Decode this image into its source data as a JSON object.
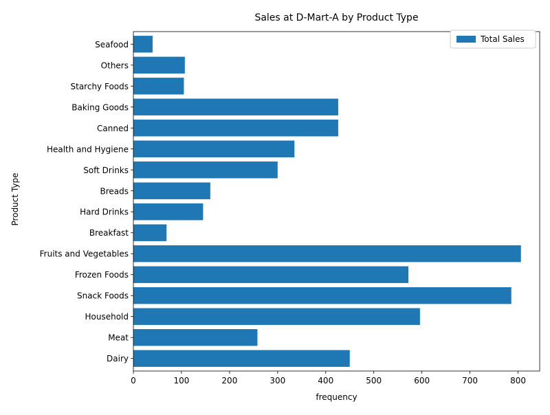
{
  "chart_data": {
    "type": "bar",
    "orientation": "horizontal",
    "title": "Sales at D-Mart-A by Product Type",
    "xlabel": "frequency",
    "ylabel": "Product Type",
    "xlim": [
      0,
      845
    ],
    "xticks": [
      0,
      100,
      200,
      300,
      400,
      500,
      600,
      700,
      800
    ],
    "grid": false,
    "legend_position": "top-right",
    "bar_color": "#1f77b4",
    "categories": [
      "Dairy",
      "Meat",
      "Household",
      "Snack Foods",
      "Frozen Foods",
      "Fruits and Vegetables",
      "Breakfast",
      "Hard Drinks",
      "Breads",
      "Soft Drinks",
      "Health and Hygiene",
      "Canned",
      "Baking Goods",
      "Starchy Foods",
      "Others",
      "Seafood"
    ],
    "series": [
      {
        "name": "Total Sales",
        "values": [
          450,
          258,
          596,
          786,
          572,
          806,
          69,
          145,
          160,
          300,
          335,
          426,
          426,
          105,
          107,
          40
        ]
      }
    ]
  }
}
